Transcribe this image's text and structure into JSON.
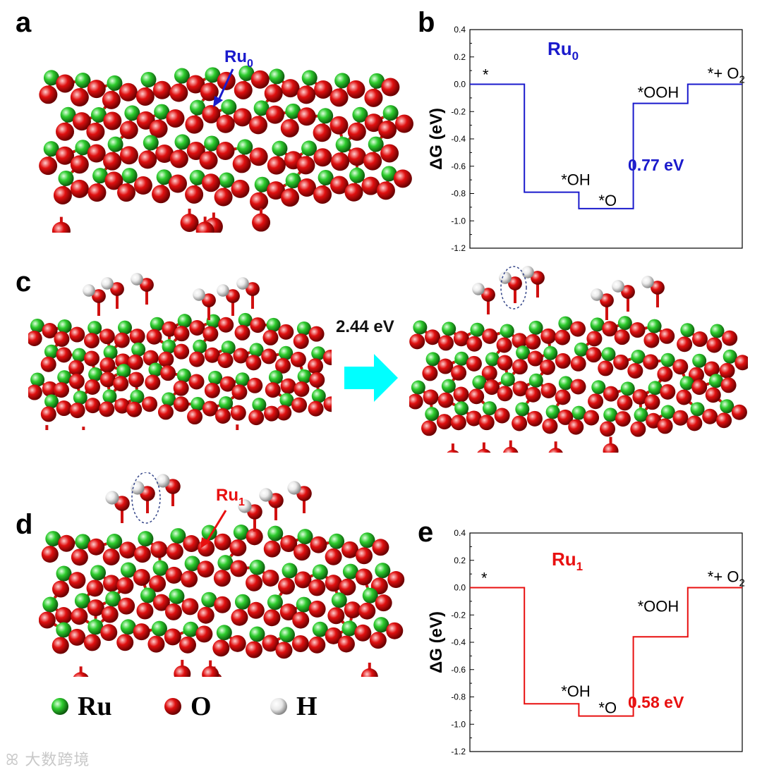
{
  "panels": {
    "a": "a",
    "b": "b",
    "c": "c",
    "d": "d",
    "e": "e"
  },
  "colors": {
    "ru": "#2ecc2e",
    "o": "#e01010",
    "h": "#f2f2f2",
    "ru0": "#1a1acc",
    "ru1": "#e81010",
    "arrow": "#00ffff"
  },
  "annotations": {
    "ru0_main": "Ru",
    "ru0_sub": "0",
    "ru1_main": "Ru",
    "ru1_sub": "1",
    "barrier": "2.44 eV"
  },
  "legend": [
    {
      "label": "Ru",
      "color": "#2ecc2e"
    },
    {
      "label": "O",
      "color": "#e01010"
    },
    {
      "label": "H",
      "color": "#f2f2f2"
    }
  ],
  "watermark": "大数跨境",
  "chart_data": [
    {
      "type": "step",
      "title_main": "Ru",
      "title_sub": "0",
      "ylabel": "ΔG (eV)",
      "ylim": [
        -1.2,
        0.4
      ],
      "yticks": [
        "0.4",
        "0.2",
        "0.0",
        "-0.2",
        "-0.4",
        "-0.6",
        "-0.8",
        "-1.0",
        "-1.2"
      ],
      "steps": [
        "*",
        "*OH",
        "*O",
        "*OOH",
        "*+ O2"
      ],
      "values": [
        0.0,
        -0.79,
        -0.91,
        -0.14,
        0.0
      ],
      "overpotential": "0.77 eV",
      "color": "#1a1acc"
    },
    {
      "type": "step",
      "title_main": "Ru",
      "title_sub": "1",
      "ylabel": "ΔG (eV)",
      "ylim": [
        -1.2,
        0.4
      ],
      "yticks": [
        "0.4",
        "0.2",
        "0.0",
        "-0.2",
        "-0.4",
        "-0.6",
        "-0.8",
        "-1.0",
        "-1.2"
      ],
      "steps": [
        "*",
        "*OH",
        "*O",
        "*OOH",
        "*+ O2"
      ],
      "values": [
        0.0,
        -0.85,
        -0.94,
        -0.36,
        0.0
      ],
      "overpotential": "0.58 eV",
      "color": "#e81010"
    }
  ]
}
